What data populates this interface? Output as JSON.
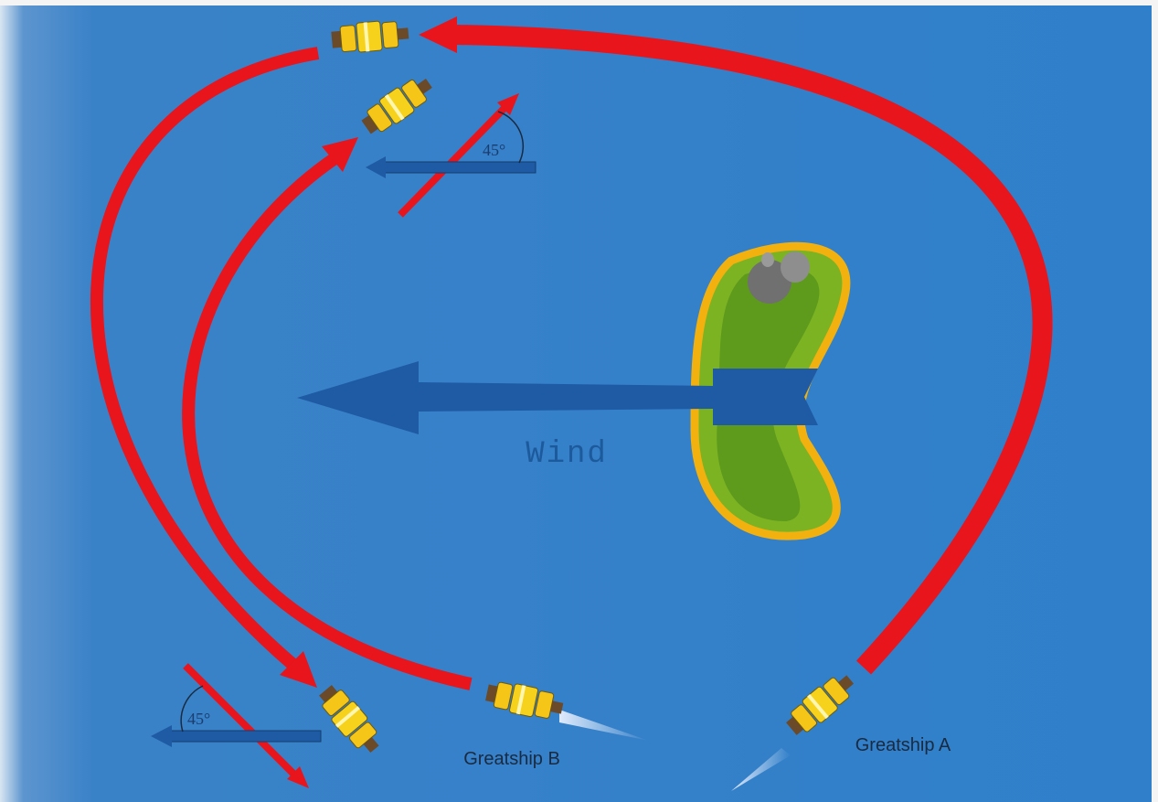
{
  "labels": {
    "wind": "Wind",
    "angle_top": "45°",
    "angle_bottom": "45°",
    "ship_a": "Greatship A",
    "ship_b": "Greatship B"
  }
}
